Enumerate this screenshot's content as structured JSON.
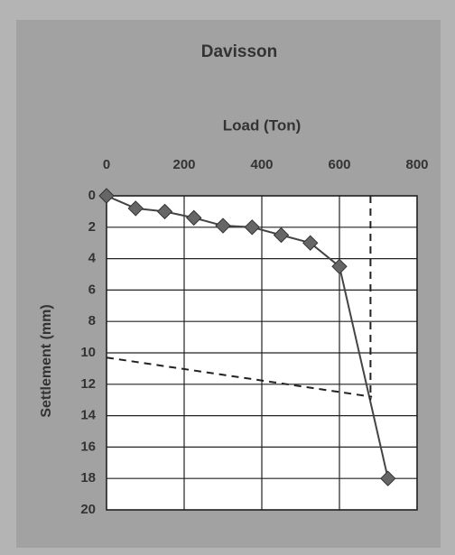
{
  "chart_data": {
    "type": "line",
    "title": "Davisson",
    "x_label": "Load (Ton)",
    "y_label": "Settlement (mm)",
    "x_axis_position": "top",
    "y_inverted": true,
    "grid": true,
    "xlim": [
      0,
      800
    ],
    "xticks": [
      0,
      200,
      400,
      600,
      800
    ],
    "ylim": [
      0,
      20
    ],
    "yticks": [
      0,
      2,
      4,
      6,
      8,
      10,
      12,
      14,
      16,
      18,
      20
    ],
    "series": [
      {
        "color": "#444444",
        "marker": "diamond",
        "dashed": false,
        "x": [
          0,
          75,
          150,
          225,
          300,
          375,
          450,
          525,
          600,
          725
        ],
        "values": [
          0,
          0.8,
          1,
          1.4,
          1.9,
          2,
          2.5,
          3,
          4.5,
          18
        ]
      },
      {
        "color": "#222222",
        "marker": "none",
        "dashed": true,
        "x": [
          0,
          684
        ],
        "values": [
          10.3,
          12.8
        ]
      },
      {
        "color": "#222222",
        "marker": "none",
        "dashed": true,
        "x": [
          680,
          680
        ],
        "values": [
          0,
          13
        ]
      }
    ]
  }
}
